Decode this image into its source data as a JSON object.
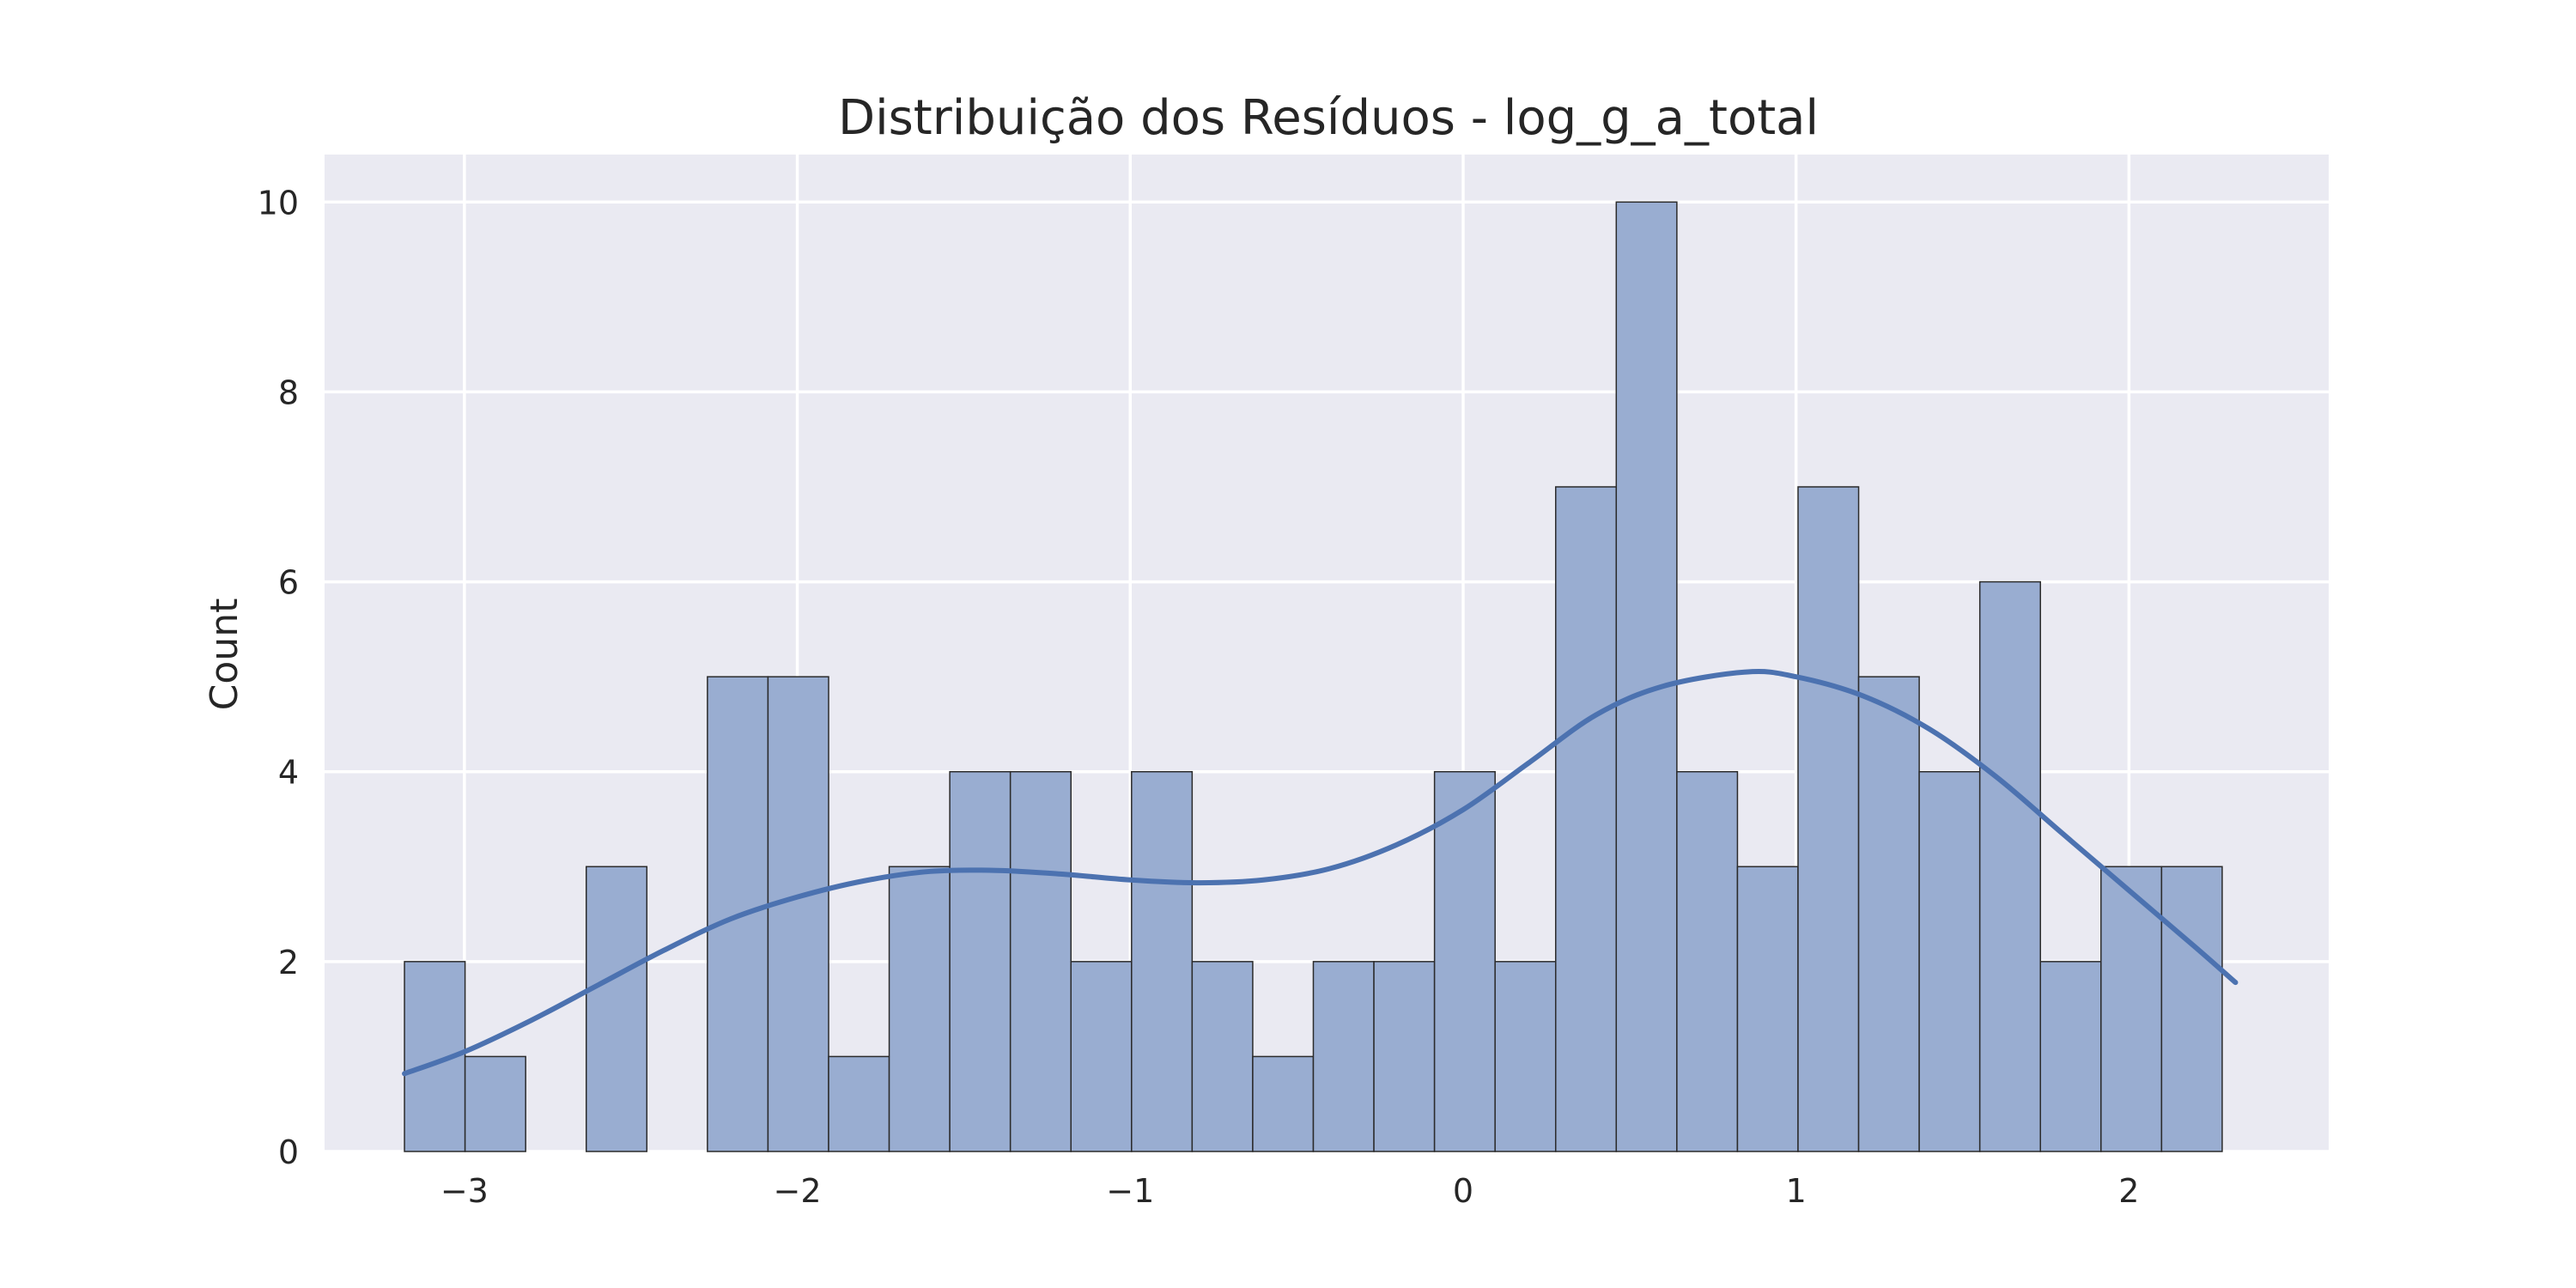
{
  "chart_data": {
    "type": "bar",
    "title": "Distribuição dos Resíduos - log_g_a_total",
    "xlabel": "",
    "ylabel": "Count",
    "bin_edges": [
      -3.18,
      -2.998,
      -2.816,
      -2.634,
      -2.452,
      -2.27,
      -2.088,
      -1.906,
      -1.724,
      -1.542,
      -1.36,
      -1.178,
      -0.996,
      -0.814,
      -0.632,
      -0.45,
      -0.268,
      -0.086,
      0.096,
      0.278,
      0.46,
      0.642,
      0.824,
      1.006,
      1.188,
      1.37,
      1.552,
      1.734,
      1.916,
      2.098,
      2.28
    ],
    "counts": [
      2,
      1,
      0,
      3,
      0,
      5,
      5,
      1,
      3,
      4,
      4,
      2,
      4,
      2,
      1,
      2,
      2,
      4,
      2,
      7,
      10,
      4,
      3,
      7,
      5,
      4,
      6,
      2,
      3,
      3
    ],
    "kde": {
      "x": [
        -3.18,
        -3.0,
        -2.8,
        -2.6,
        -2.4,
        -2.2,
        -2.0,
        -1.8,
        -1.6,
        -1.4,
        -1.2,
        -1.0,
        -0.8,
        -0.6,
        -0.4,
        -0.2,
        0.0,
        0.2,
        0.4,
        0.6,
        0.85,
        1.0,
        1.2,
        1.4,
        1.6,
        1.8,
        2.0,
        2.2,
        2.32
      ],
      "y": [
        0.82,
        1.05,
        1.38,
        1.75,
        2.12,
        2.45,
        2.68,
        2.85,
        2.95,
        2.96,
        2.92,
        2.86,
        2.83,
        2.86,
        2.98,
        3.23,
        3.6,
        4.1,
        4.6,
        4.9,
        5.05,
        5.0,
        4.8,
        4.45,
        3.95,
        3.35,
        2.75,
        2.15,
        1.78
      ]
    },
    "xlim": [
      -3.42,
      2.6
    ],
    "ylim": [
      0,
      10.5
    ],
    "xticks": [
      -3,
      -2,
      -1,
      0,
      1,
      2
    ],
    "xtick_labels": [
      "−3",
      "−2",
      "−1",
      "0",
      "1",
      "2"
    ],
    "yticks": [
      0,
      2,
      4,
      6,
      8,
      10
    ],
    "grid": true,
    "colors": {
      "background": "#EAEAF2",
      "grid": "#FFFFFF",
      "bar_fill": "#99ADD1",
      "bar_edge": "#2B2B2B",
      "kde_line": "#4C72B0"
    }
  }
}
